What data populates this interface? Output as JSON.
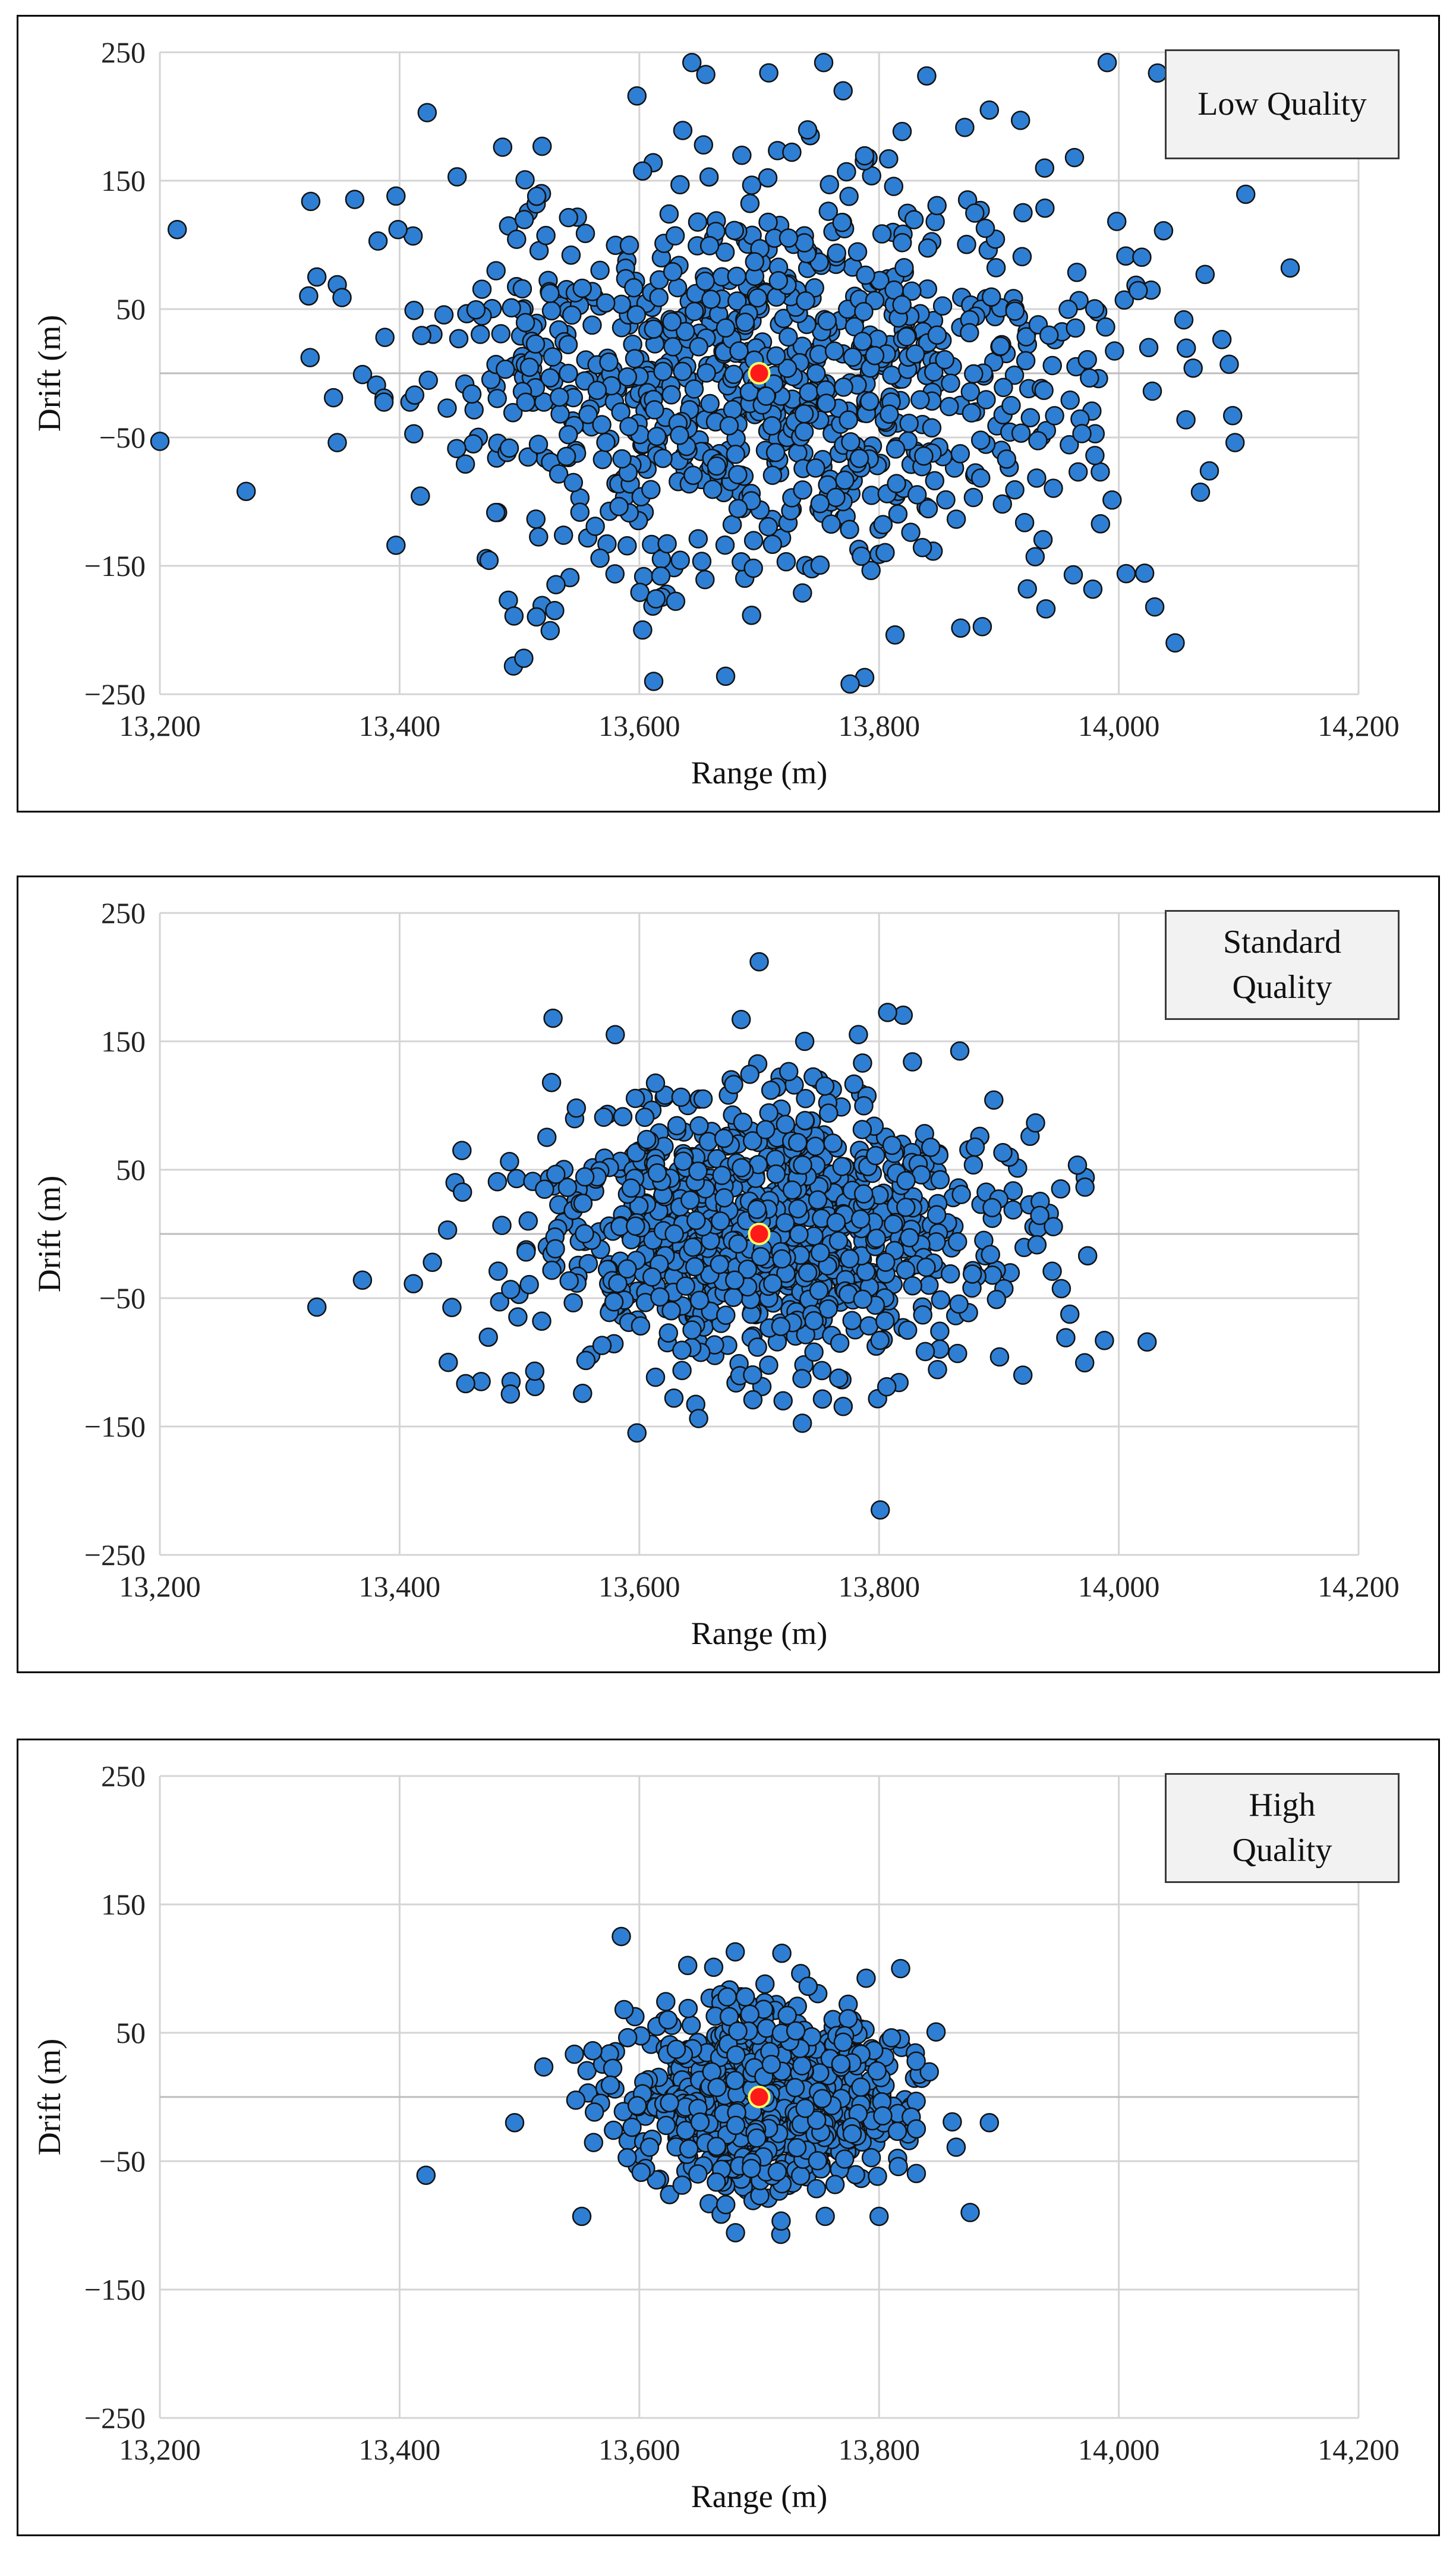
{
  "chart_data": [
    {
      "type": "scatter",
      "legend_lines": [
        "Low Quality"
      ],
      "xlabel": "Range (m)",
      "ylabel": "Drift (m)",
      "xlim": [
        13200,
        14200
      ],
      "ylim": [
        -250,
        250
      ],
      "xticks": [
        13200,
        13400,
        13600,
        13800,
        14000,
        14200
      ],
      "xtick_labels": [
        "13,200",
        "13,400",
        "13,600",
        "13,800",
        "14,000",
        "14,200"
      ],
      "yticks": [
        250,
        150,
        50,
        -50,
        -150,
        -250
      ],
      "ytick_labels": [
        "250",
        "150",
        "50",
        "−50",
        "−150",
        "−250"
      ],
      "grid": true,
      "point_color": "#2e7fd3",
      "target": {
        "x": 13700,
        "y": 0,
        "color": "#ff1a1a"
      },
      "scatter": {
        "count": 1000,
        "center_x": 13700,
        "center_y": 0,
        "sd_x": 140,
        "sd_y": 78,
        "seed": 11
      },
      "points": [
        [
          13200,
          -53
        ],
        [
          13272,
          -92
        ],
        [
          13331,
          75
        ],
        [
          13348,
          69
        ],
        [
          13348,
          -54
        ],
        [
          13382,
          103
        ],
        [
          13397,
          138
        ],
        [
          13397,
          -134
        ],
        [
          13423,
          203
        ],
        [
          13448,
          153
        ],
        [
          13495,
          -228
        ],
        [
          13598,
          216
        ],
        [
          13612,
          -240
        ],
        [
          13672,
          -236
        ],
        [
          13708,
          234
        ],
        [
          13770,
          220
        ],
        [
          13788,
          -237
        ],
        [
          13808,
          167
        ],
        [
          13892,
          205
        ],
        [
          13918,
          197
        ],
        [
          13963,
          168
        ],
        [
          14025,
          20
        ],
        [
          14062,
          4
        ],
        [
          14072,
          77
        ],
        [
          14047,
          -210
        ],
        [
          14095,
          -33
        ],
        [
          14097,
          -54
        ],
        [
          14143,
          82
        ],
        [
          14030,
          -182
        ],
        [
          13962,
          -157
        ]
      ]
    },
    {
      "type": "scatter",
      "legend_lines": [
        "Standard",
        "Quality"
      ],
      "xlabel": "Range (m)",
      "ylabel": "Drift (m)",
      "xlim": [
        13200,
        14200
      ],
      "ylim": [
        -250,
        250
      ],
      "xticks": [
        13200,
        13400,
        13600,
        13800,
        14000,
        14200
      ],
      "xtick_labels": [
        "13,200",
        "13,400",
        "13,600",
        "13,800",
        "14,000",
        "14,200"
      ],
      "yticks": [
        250,
        150,
        50,
        -50,
        -150,
        -250
      ],
      "ytick_labels": [
        "250",
        "150",
        "50",
        "−50",
        "−150",
        "−250"
      ],
      "grid": true,
      "point_color": "#2e7fd3",
      "target": {
        "x": 13700,
        "y": 0,
        "color": "#ff1a1a"
      },
      "scatter": {
        "count": 1000,
        "center_x": 13700,
        "center_y": 0,
        "sd_x": 95,
        "sd_y": 52,
        "seed": 23
      },
      "points": [
        [
          13331,
          -57
        ],
        [
          13369,
          -36
        ],
        [
          13440,
          3
        ],
        [
          13452,
          65
        ],
        [
          13468,
          -115
        ],
        [
          13493,
          -115
        ],
        [
          13528,
          168
        ],
        [
          13598,
          -155
        ],
        [
          13685,
          167
        ],
        [
          13700,
          212
        ],
        [
          13738,
          150
        ],
        [
          13801,
          -215
        ],
        [
          13942,
          16
        ],
        [
          13972,
          44
        ],
        [
          13974,
          -17
        ],
        [
          13988,
          -83
        ],
        [
          13926,
          76
        ],
        [
          13920,
          -110
        ]
      ]
    },
    {
      "type": "scatter",
      "legend_lines": [
        "High",
        "Quality"
      ],
      "xlabel": "Range (m)",
      "ylabel": "Drift (m)",
      "xlim": [
        13200,
        14200
      ],
      "ylim": [
        -250,
        250
      ],
      "xticks": [
        13200,
        13400,
        13600,
        13800,
        14000,
        14200
      ],
      "xtick_labels": [
        "13,200",
        "13,400",
        "13,600",
        "13,800",
        "14,000",
        "14,200"
      ],
      "yticks": [
        250,
        150,
        50,
        -50,
        -150,
        -250
      ],
      "ytick_labels": [
        "250",
        "150",
        "50",
        "−50",
        "−150",
        "−250"
      ],
      "grid": true,
      "point_color": "#2e7fd3",
      "target": {
        "x": 13700,
        "y": 0,
        "color": "#ff1a1a"
      },
      "scatter": {
        "count": 1000,
        "center_x": 13705,
        "center_y": 0,
        "sd_x": 55,
        "sd_y": 33,
        "seed": 37
      },
      "points": [
        [
          13422,
          -61
        ],
        [
          13496,
          -20
        ],
        [
          13552,
          -93
        ],
        [
          13585,
          125
        ],
        [
          13680,
          113
        ],
        [
          13718,
          -107
        ],
        [
          13818,
          100
        ],
        [
          13876,
          -90
        ],
        [
          13892,
          -20
        ],
        [
          13800,
          -93
        ]
      ]
    }
  ]
}
